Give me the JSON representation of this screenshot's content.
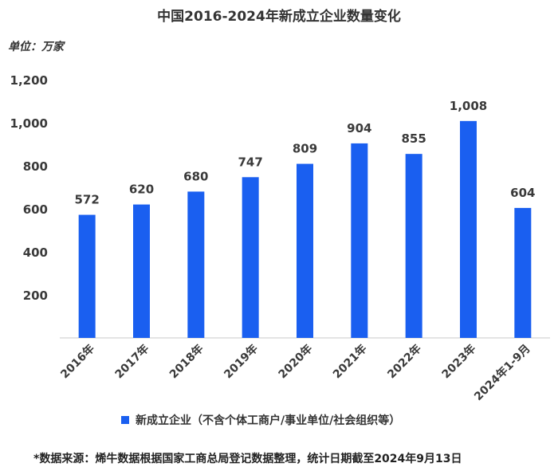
{
  "chart_data": {
    "type": "bar",
    "title": "中国2016-2024年新成立企业数量变化",
    "unit_label": "单位：万家",
    "categories": [
      "2016年",
      "2017年",
      "2018年",
      "2019年",
      "2020年",
      "2021年",
      "2022年",
      "2023年",
      "2024年1-9月"
    ],
    "series": [
      {
        "name": "新成立企业（不含个体工商户/事业单位/社会组织等）",
        "values": [
          572,
          620,
          680,
          747,
          809,
          904,
          855,
          1008,
          604
        ],
        "value_labels": [
          "572",
          "620",
          "680",
          "747",
          "809",
          "904",
          "855",
          "1,008",
          "604"
        ]
      }
    ],
    "ylim": [
      0,
      1200
    ],
    "yticks": [
      200,
      400,
      600,
      800,
      1000,
      1200
    ],
    "ytick_labels": [
      "200",
      "400",
      "600",
      "800",
      "1,000",
      "1,200"
    ],
    "grid": false,
    "legend_position": "bottom",
    "bar_color": "#1a5ff0"
  },
  "footer": {
    "source": "*数据来源：烯牛数据根据国家工商总局登记数据整理，统计日期截至2024年9月13日"
  }
}
